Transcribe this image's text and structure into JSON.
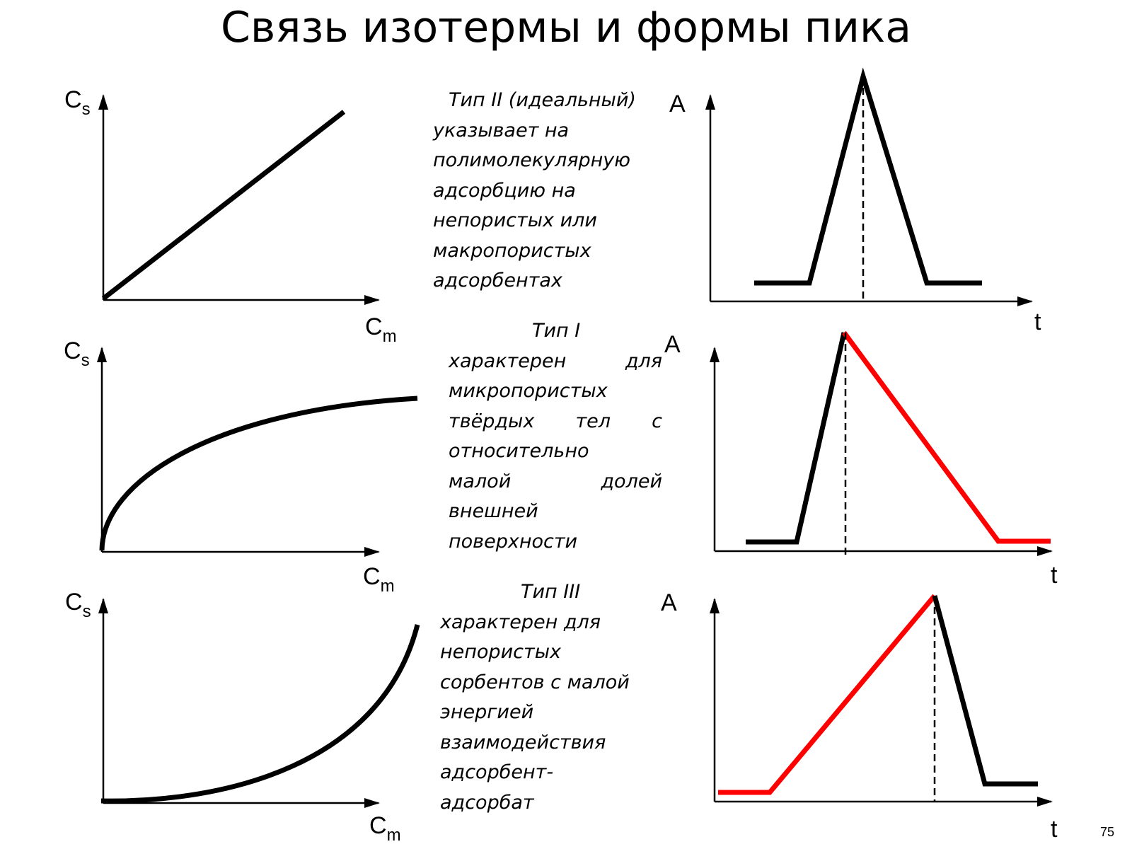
{
  "title": "Связь изотермы и формы пика",
  "page_number": "75",
  "colors": {
    "curve": "#000000",
    "highlight": "#ff0000"
  },
  "rows": [
    {
      "isotherm_shape": "linear",
      "isotherm_labels": {
        "y_main": "C",
        "y_sub": "s",
        "x_main": "C",
        "x_sub": "m"
      },
      "peak_labels": {
        "y": "A",
        "x": "t"
      },
      "peak_shape": "symmetric",
      "description_lines": [
        "Тип II (идеальный)",
        "указывает на",
        "полимолекулярную",
        "адсорбцию на",
        "непористых или",
        "макропористых",
        "адсорбентах"
      ]
    },
    {
      "isotherm_shape": "convex",
      "isotherm_labels": {
        "y_main": "C",
        "y_sub": "s",
        "x_main": "C",
        "x_sub": "m"
      },
      "peak_labels": {
        "y": "A",
        "x": "t"
      },
      "peak_shape": "tailing",
      "description_lines": [
        "Тип I",
        "характерен для",
        "микропористых",
        "твёрдых тел с",
        "относительно",
        "малой долей",
        "внешней",
        "поверхности"
      ]
    },
    {
      "isotherm_shape": "concave",
      "isotherm_labels": {
        "y_main": "C",
        "y_sub": "s",
        "x_main": "C",
        "x_sub": "m"
      },
      "peak_labels": {
        "y": "A",
        "x": "t"
      },
      "peak_shape": "fronting",
      "description_lines": [
        "Тип III",
        "характерен для",
        "непористых",
        "сорбентов с малой",
        "энергией",
        "взаимодействия",
        "адсорбент-",
        "адсорбат"
      ]
    }
  ]
}
